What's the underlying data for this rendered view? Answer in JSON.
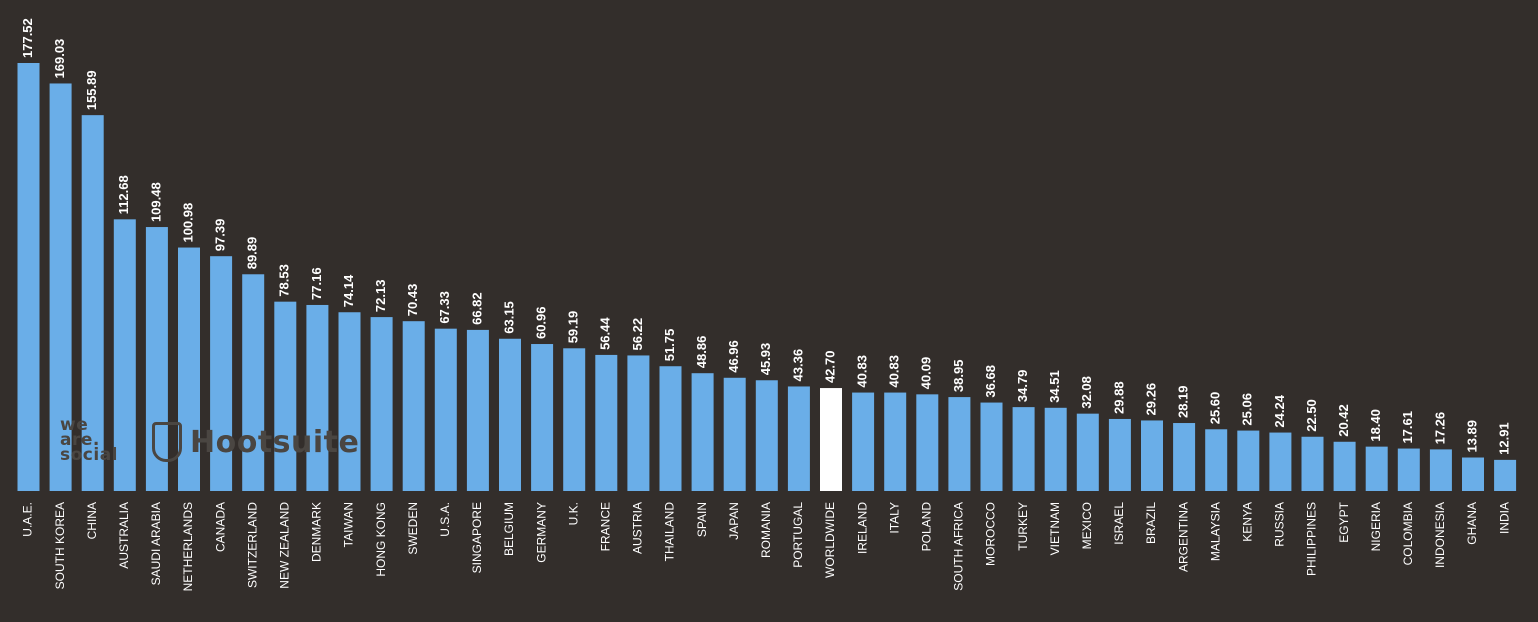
{
  "chart_data": {
    "type": "bar",
    "categories": [
      "U.A.E.",
      "SOUTH KOREA",
      "CHINA",
      "AUSTRALIA",
      "SAUDI ARABIA",
      "NETHERLANDS",
      "CANADA",
      "SWITZERLAND",
      "NEW ZEALAND",
      "DENMARK",
      "TAIWAN",
      "HONG KONG",
      "SWEDEN",
      "U.S.A.",
      "SINGAPORE",
      "BELGIUM",
      "GERMANY",
      "U.K.",
      "FRANCE",
      "AUSTRIA",
      "THAILAND",
      "SPAIN",
      "JAPAN",
      "ROMANIA",
      "PORTUGAL",
      "WORLDWIDE",
      "IRELAND",
      "ITALY",
      "POLAND",
      "SOUTH AFRICA",
      "MOROCCO",
      "TURKEY",
      "VIETNAM",
      "MEXICO",
      "ISRAEL",
      "BRAZIL",
      "ARGENTINA",
      "MALAYSIA",
      "KENYA",
      "RUSSIA",
      "PHILIPPINES",
      "EGYPT",
      "NIGERIA",
      "COLOMBIA",
      "INDONESIA",
      "GHANA",
      "INDIA"
    ],
    "values": [
      177.52,
      169.03,
      155.89,
      112.68,
      109.48,
      100.98,
      97.39,
      89.89,
      78.53,
      77.16,
      74.14,
      72.13,
      70.43,
      67.33,
      66.82,
      63.15,
      60.96,
      59.19,
      56.44,
      56.22,
      51.75,
      48.86,
      46.96,
      45.93,
      43.36,
      42.7,
      40.83,
      40.83,
      40.09,
      38.95,
      36.68,
      34.79,
      34.51,
      32.08,
      29.88,
      29.26,
      28.19,
      25.6,
      25.06,
      24.24,
      22.5,
      20.42,
      18.4,
      17.61,
      17.26,
      13.89,
      12.91
    ],
    "value_labels": [
      "177.52",
      "169.03",
      "155.89",
      "112.68",
      "109.48",
      "100.98",
      "97.39",
      "89.89",
      "78.53",
      "77.16",
      "74.14",
      "72.13",
      "70.43",
      "67.33",
      "66.82",
      "63.15",
      "60.96",
      "59.19",
      "56.44",
      "56.22",
      "51.75",
      "48.86",
      "46.96",
      "45.93",
      "43.36",
      "42.70",
      "40.83",
      "40.83",
      "40.09",
      "38.95",
      "36.68",
      "34.79",
      "34.51",
      "32.08",
      "29.88",
      "29.26",
      "28.19",
      "25.60",
      "25.06",
      "24.24",
      "22.50",
      "20.42",
      "18.40",
      "17.61",
      "17.26",
      "13.89",
      "12.91"
    ],
    "highlight_category": "WORLDWIDE",
    "title": "",
    "xlabel": "",
    "ylabel": "",
    "ylim": [
      0,
      177.52
    ],
    "grid": false,
    "legend": "none",
    "colors": {
      "bar": "#6aaee8",
      "highlight": "#ffffff",
      "background": "#332e2b",
      "text": "#ffffff"
    }
  },
  "watermark": {
    "brand1": [
      "we",
      "are.",
      "social"
    ],
    "brand2": "Hootsuite",
    "brand2_icon": "owl-icon"
  }
}
